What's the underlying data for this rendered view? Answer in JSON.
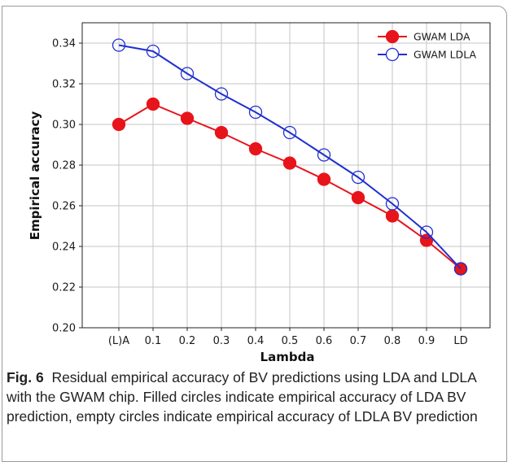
{
  "chart_data": {
    "type": "line",
    "xlabel": "Lambda",
    "ylabel": "Empirical accuracy",
    "categories": [
      "(L)A",
      "0.1",
      "0.2",
      "0.3",
      "0.4",
      "0.5",
      "0.6",
      "0.7",
      "0.8",
      "0.9",
      "LD"
    ],
    "ylim": [
      0.2,
      0.35
    ],
    "yticks": [
      "0.20",
      "0.22",
      "0.24",
      "0.26",
      "0.28",
      "0.30",
      "0.32",
      "0.34"
    ],
    "grid": true,
    "legend_position": "top-right",
    "series": [
      {
        "name": "GWAM LDA",
        "marker": "filled-circle",
        "color": "#e8141b",
        "values": [
          0.3,
          0.31,
          0.303,
          0.296,
          0.288,
          0.281,
          0.273,
          0.264,
          0.255,
          0.243,
          0.229
        ]
      },
      {
        "name": "GWAM LDLA",
        "marker": "empty-circle",
        "color": "#1f2fd0",
        "values": [
          0.339,
          0.336,
          0.325,
          0.315,
          0.306,
          0.296,
          0.285,
          0.274,
          0.261,
          0.247,
          0.229
        ]
      }
    ]
  },
  "caption": {
    "label": "Fig. 6",
    "text": "Residual empirical accuracy of BV predictions using LDA and LDLA with the GWAM chip. Filled circles indicate empirical accuracy of LDA BV prediction, empty circles indicate empirical accuracy of LDLA BV prediction"
  }
}
